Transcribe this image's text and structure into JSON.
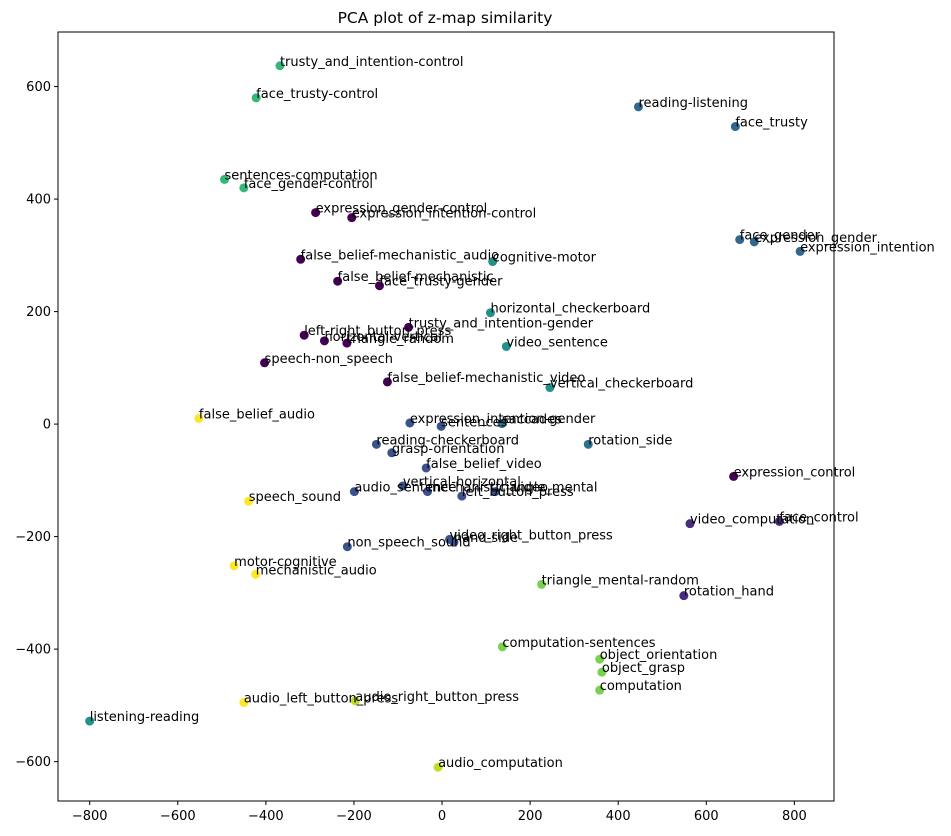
{
  "chart_data": {
    "type": "scatter",
    "title": "PCA plot of z-map similarity",
    "xlabel": "",
    "ylabel": "",
    "xlim": [
      -872,
      890
    ],
    "ylim": [
      -670,
      697
    ],
    "xticks": [
      -800,
      -600,
      -400,
      -200,
      0,
      200,
      400,
      600,
      800
    ],
    "yticks": [
      -600,
      -400,
      -200,
      0,
      200,
      400,
      600
    ],
    "xtick_labels": [
      "−800",
      "−600",
      "−400",
      "−200",
      "0",
      "200",
      "400",
      "600",
      "800"
    ],
    "ytick_labels": [
      "−600",
      "−400",
      "−200",
      "0",
      "200",
      "400",
      "600"
    ],
    "grid": false,
    "points": [
      {
        "label": "trusty_and_intention-control",
        "x": -368,
        "y": 637,
        "color": "#35b779"
      },
      {
        "label": "face_trusty-control",
        "x": -422,
        "y": 580,
        "color": "#35b779"
      },
      {
        "label": "reading-listening",
        "x": 446,
        "y": 564,
        "color": "#31688e"
      },
      {
        "label": "face_trusty",
        "x": 666,
        "y": 529,
        "color": "#31688e"
      },
      {
        "label": "sentences-computation",
        "x": -494,
        "y": 435,
        "color": "#35b779"
      },
      {
        "label": "face_gender-control",
        "x": -450,
        "y": 420,
        "color": "#35b779"
      },
      {
        "label": "expression_gender-control",
        "x": -287,
        "y": 376,
        "color": "#440154"
      },
      {
        "label": "expression_intention-control",
        "x": -205,
        "y": 367,
        "color": "#440154"
      },
      {
        "label": "face_gender",
        "x": 676,
        "y": 328,
        "color": "#31688e"
      },
      {
        "label": "expression_gender",
        "x": 709,
        "y": 324,
        "color": "#31688e"
      },
      {
        "label": "expression_intention",
        "x": 813,
        "y": 307,
        "color": "#31688e"
      },
      {
        "label": "false_belief-mechanistic_audio",
        "x": -321,
        "y": 293,
        "color": "#440154"
      },
      {
        "label": "cognitive-motor",
        "x": 115,
        "y": 289,
        "color": "#21918c"
      },
      {
        "label": "false_belief-mechanistic",
        "x": -237,
        "y": 254,
        "color": "#440154"
      },
      {
        "label": "face_trusty-gender",
        "x": -142,
        "y": 246,
        "color": "#440154"
      },
      {
        "label": "horizontal_checkerboard",
        "x": 110,
        "y": 198,
        "color": "#21918c"
      },
      {
        "label": "trusty_and_intention-gender",
        "x": -76,
        "y": 172,
        "color": "#440154"
      },
      {
        "label": "left-right_button_press",
        "x": -313,
        "y": 158,
        "color": "#440154"
      },
      {
        "label": "horizontal-vertical",
        "x": -267,
        "y": 148,
        "color": "#440154"
      },
      {
        "label": "triangle_random",
        "x": -216,
        "y": 144,
        "color": "#440154"
      },
      {
        "label": "video_sentence",
        "x": 146,
        "y": 138,
        "color": "#21918c"
      },
      {
        "label": "speech-non_speech",
        "x": -403,
        "y": 109,
        "color": "#440154"
      },
      {
        "label": "false_belief-mechanistic_video",
        "x": -124,
        "y": 75,
        "color": "#440154"
      },
      {
        "label": "vertical_checkerboard",
        "x": 245,
        "y": 65,
        "color": "#21918c"
      },
      {
        "label": "false_belief_audio",
        "x": -552,
        "y": 10,
        "color": "#fde725"
      },
      {
        "label": "expression_intention-gender",
        "x": -73,
        "y": 2,
        "color": "#3b528b"
      },
      {
        "label": "saccades",
        "x": 136,
        "y": 1,
        "color": "#2c728e"
      },
      {
        "label": "sentences",
        "x": -2,
        "y": -4,
        "color": "#3b528b"
      },
      {
        "label": "reading-checkerboard",
        "x": -149,
        "y": -36,
        "color": "#3b528b"
      },
      {
        "label": "rotation_side",
        "x": 332,
        "y": -36,
        "color": "#2c728e"
      },
      {
        "label": "grasp-orientation",
        "x": -114,
        "y": -51,
        "color": "#3b528b"
      },
      {
        "label": "false_belief_video",
        "x": -36,
        "y": -78,
        "color": "#3b528b"
      },
      {
        "label": "expression_control",
        "x": 662,
        "y": -93,
        "color": "#440154"
      },
      {
        "label": "vertical-horizontal",
        "x": -89,
        "y": -110,
        "color": "#3b528b"
      },
      {
        "label": "audio_sentence",
        "x": -199,
        "y": -120,
        "color": "#3b528b"
      },
      {
        "label": "triangle_mental",
        "x": 121,
        "y": -120,
        "color": "#3b528b"
      },
      {
        "label": "mechanistic_video",
        "x": -33,
        "y": -120,
        "color": "#3b528b"
      },
      {
        "label": "left_button_press",
        "x": 45,
        "y": -128,
        "color": "#3b528b"
      },
      {
        "label": "speech_sound",
        "x": -439,
        "y": -137,
        "color": "#fde725"
      },
      {
        "label": "video_computation",
        "x": 563,
        "y": -177,
        "color": "#472d7b"
      },
      {
        "label": "face_control",
        "x": 766,
        "y": -173,
        "color": "#472d7b"
      },
      {
        "label": "video_right_button_press",
        "x": 17,
        "y": -205,
        "color": "#3b528b"
      },
      {
        "label": "hand-side",
        "x": 27,
        "y": -210,
        "color": "#3b528b"
      },
      {
        "label": "non_speech_sound",
        "x": -215,
        "y": -218,
        "color": "#3b528b"
      },
      {
        "label": "motor-cognitive",
        "x": -472,
        "y": -252,
        "color": "#fde725"
      },
      {
        "label": "mechanistic_audio",
        "x": -423,
        "y": -267,
        "color": "#fde725"
      },
      {
        "label": "triangle_mental-random",
        "x": 226,
        "y": -285,
        "color": "#7ad151"
      },
      {
        "label": "rotation_hand",
        "x": 549,
        "y": -305,
        "color": "#472d7b"
      },
      {
        "label": "computation-sentences",
        "x": 137,
        "y": -396,
        "color": "#7ad151"
      },
      {
        "label": "object_orientation",
        "x": 358,
        "y": -418,
        "color": "#7ad151"
      },
      {
        "label": "object_grasp",
        "x": 363,
        "y": -441,
        "color": "#7ad151"
      },
      {
        "label": "computation",
        "x": 358,
        "y": -473,
        "color": "#7ad151"
      },
      {
        "label": "audio_left_button_press",
        "x": -450,
        "y": -495,
        "color": "#fde725"
      },
      {
        "label": "audio_right_button_press",
        "x": -197,
        "y": -492,
        "color": "#bddf26"
      },
      {
        "label": "listening-reading",
        "x": -800,
        "y": -528,
        "color": "#21918c"
      },
      {
        "label": "audio_computation",
        "x": -9,
        "y": -610,
        "color": "#bddf26"
      }
    ]
  }
}
